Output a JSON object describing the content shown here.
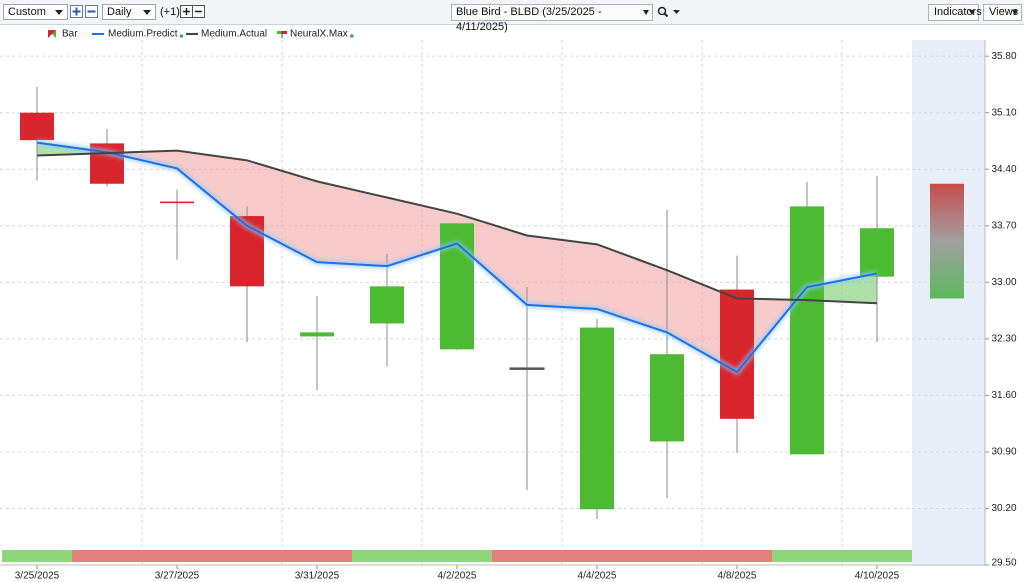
{
  "toolbar": {
    "period": "Custom",
    "interval": "Daily",
    "offset": "(+1)",
    "title": "Blue Bird - BLBD (3/25/2025 - 4/11/2025)",
    "indicators": "Indicators",
    "views": "Views"
  },
  "chart_data": {
    "type": "candlestick",
    "categories": [
      "3/25/2025",
      null,
      "3/27/2025",
      null,
      "3/31/2025",
      null,
      "4/2/2025",
      null,
      "4/4/2025",
      null,
      "4/8/2025",
      null,
      "4/10/2025",
      null
    ],
    "candles": {
      "name": "Bar",
      "up_color": "#4cbb33",
      "down_color": "#d9262c",
      "flat_color": "#555555",
      "open": [
        35.1,
        34.72,
        34.0,
        33.82,
        32.33,
        32.49,
        32.17,
        31.94,
        30.19,
        31.03,
        32.91,
        30.87,
        33.07,
        null
      ],
      "high": [
        35.42,
        34.9,
        34.15,
        33.94,
        32.83,
        33.35,
        33.73,
        32.94,
        32.55,
        33.9,
        33.33,
        34.24,
        34.32,
        null
      ],
      "low": [
        34.26,
        34.19,
        33.28,
        32.26,
        31.66,
        31.96,
        32.16,
        30.43,
        30.07,
        30.33,
        30.89,
        30.87,
        32.26,
        null
      ],
      "close": [
        34.76,
        34.22,
        33.98,
        32.95,
        32.38,
        32.95,
        33.73,
        31.94,
        32.44,
        32.11,
        31.31,
        33.94,
        33.67,
        null
      ]
    },
    "series": [
      {
        "name": "Medium.Predict",
        "color": "#1f6fe5",
        "values": [
          34.73,
          34.61,
          34.41,
          33.7,
          33.25,
          33.2,
          33.48,
          32.72,
          32.67,
          32.38,
          31.89,
          32.94,
          33.11,
          null
        ]
      },
      {
        "name": "Medium.Actual",
        "color": "#444444",
        "values": [
          34.57,
          34.6,
          34.63,
          34.51,
          34.25,
          34.05,
          33.85,
          33.58,
          33.47,
          33.15,
          32.8,
          32.78,
          32.74,
          null
        ]
      }
    ],
    "forecast": {
      "name": "NeuralX.Max",
      "high": [
        null,
        null,
        null,
        null,
        null,
        null,
        null,
        null,
        null,
        null,
        null,
        null,
        null,
        34.22
      ],
      "low": [
        null,
        null,
        null,
        null,
        null,
        null,
        null,
        null,
        null,
        null,
        null,
        null,
        null,
        32.8
      ]
    },
    "signal": [
      1,
      -1,
      -1,
      -1,
      -1,
      1,
      1,
      -1,
      -1,
      -1,
      -1,
      1,
      1,
      null
    ],
    "ylim": [
      29.5,
      36.0
    ],
    "yticks": [
      {
        "value": 29.5,
        "label": "29.50"
      },
      {
        "value": 30.2,
        "label": "30.20"
      },
      {
        "value": 30.9,
        "label": "30.90"
      },
      {
        "value": 31.6,
        "label": "31.60"
      },
      {
        "value": 32.3,
        "label": "32.30"
      },
      {
        "value": 33.0,
        "label": "33.00"
      },
      {
        "value": 33.7,
        "label": "33.70"
      },
      {
        "value": 34.4,
        "label": "34.40"
      },
      {
        "value": 35.1,
        "label": "35.10"
      },
      {
        "value": 35.8,
        "label": "35.80"
      }
    ],
    "grid": true
  }
}
